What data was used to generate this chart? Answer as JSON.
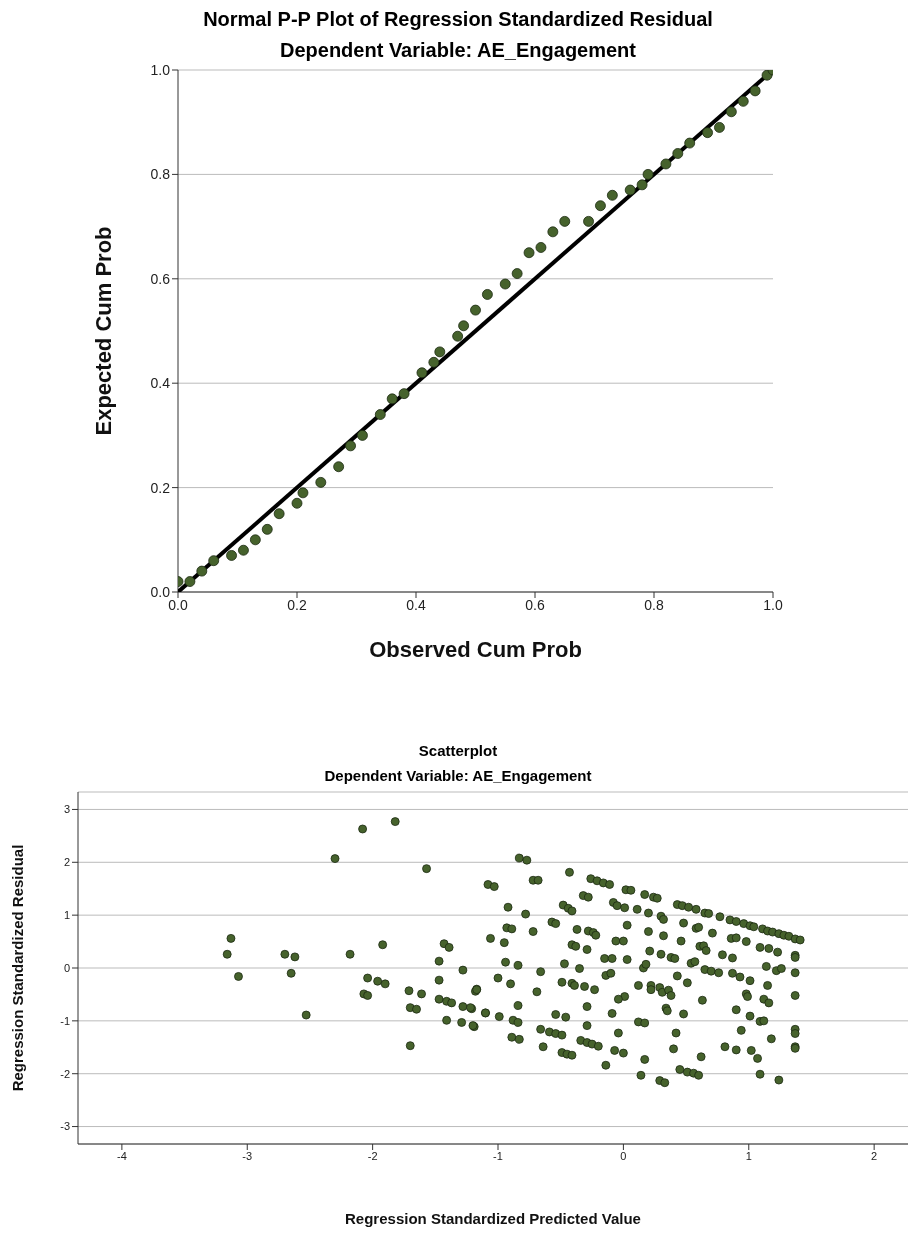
{
  "chart_data": [
    {
      "type": "scatter",
      "title": "Normal P-P Plot of Regression Standardized Residual",
      "subtitle": "Dependent Variable: AE_Engagement",
      "xlabel": "Observed Cum Prob",
      "ylabel": "Expected Cum Prob",
      "xlim": [
        0,
        1
      ],
      "ylim": [
        0,
        1
      ],
      "xticks": [
        {
          "value": 0,
          "label": "0.0"
        },
        {
          "value": 0.2,
          "label": "0.2"
        },
        {
          "value": 0.4,
          "label": "0.4"
        },
        {
          "value": 0.6,
          "label": "0.6"
        },
        {
          "value": 0.8,
          "label": "0.8"
        },
        {
          "value": 1,
          "label": "1.0"
        }
      ],
      "yticks": [
        {
          "value": 0,
          "label": "0.0"
        },
        {
          "value": 0.2,
          "label": "0.2"
        },
        {
          "value": 0.4,
          "label": "0.4"
        },
        {
          "value": 0.6,
          "label": "0.6"
        },
        {
          "value": 0.8,
          "label": "0.8"
        },
        {
          "value": 1,
          "label": "1.0"
        }
      ],
      "grid": "y",
      "marker": "circle",
      "series": [
        {
          "type": "line",
          "color": "#000000",
          "marker": "none",
          "x": [
            0,
            1
          ],
          "values": [
            0,
            1
          ]
        },
        {
          "color": "#46622c",
          "x": [
            0,
            0.02,
            0.04,
            0.06,
            0.09,
            0.11,
            0.13,
            0.15,
            0.17,
            0.2,
            0.21,
            0.24,
            0.27,
            0.29,
            0.31,
            0.34,
            0.36,
            0.38,
            0.41,
            0.43,
            0.44,
            0.47,
            0.48,
            0.5,
            0.52,
            0.55,
            0.57,
            0.59,
            0.61,
            0.63,
            0.65,
            0.69,
            0.71,
            0.73,
            0.76,
            0.78,
            0.79,
            0.82,
            0.84,
            0.86,
            0.89,
            0.91,
            0.93,
            0.95,
            0.97,
            0.99,
            1
          ],
          "values": [
            0.02,
            0.02,
            0.04,
            0.06,
            0.07,
            0.08,
            0.1,
            0.12,
            0.15,
            0.17,
            0.19,
            0.21,
            0.24,
            0.28,
            0.3,
            0.34,
            0.37,
            0.38,
            0.42,
            0.44,
            0.46,
            0.49,
            0.51,
            0.54,
            0.57,
            0.59,
            0.61,
            0.65,
            0.66,
            0.69,
            0.71,
            0.71,
            0.74,
            0.76,
            0.77,
            0.78,
            0.8,
            0.82,
            0.84,
            0.86,
            0.88,
            0.89,
            0.92,
            0.94,
            0.96,
            0.99,
            1
          ]
        }
      ]
    },
    {
      "type": "scatter",
      "title": "Scatterplot",
      "subtitle": "Dependent Variable: AE_Engagement",
      "xlabel": "Regression Standardized Predicted Value",
      "ylabel": "Regression Standardized Residual",
      "xlim": [
        -4.35,
        2.27
      ],
      "ylim": [
        -3.33,
        3.33
      ],
      "xticks": [
        -4,
        -3,
        -2,
        -1,
        0,
        1,
        2
      ],
      "yticks": [
        -3,
        -2,
        -1,
        0,
        1,
        2,
        3
      ],
      "grid": "y",
      "marker": "circle",
      "series": [
        {
          "color": "#46622c",
          "x": [
            -3.13,
            -3.16,
            -3.07,
            -2.7,
            -2.62,
            -2.65,
            -2.53,
            -2.3,
            -2.08,
            -1.82,
            -1.57,
            -2.18,
            -1.92,
            -2.04,
            -1.96,
            -1.9,
            -2.07,
            -2.04,
            -1.71,
            -1.61,
            -1.7,
            -1.65,
            -1.7,
            -1.43,
            -1.39,
            -1.47,
            -1.28,
            -1.47,
            -1.17,
            -1.18,
            -1.47,
            -1.41,
            -1.37,
            -1.28,
            -1.21,
            -1.41,
            -1.29,
            -1.19,
            -1.1,
            -0.83,
            -0.77,
            -1.08,
            -1.03,
            -0.72,
            -0.68,
            -0.43,
            -0.92,
            -0.78,
            -0.26,
            -0.21,
            -0.16,
            -0.11,
            0.02,
            0.06,
            0.17,
            0.24,
            0.27,
            -0.32,
            -0.28,
            -0.48,
            -0.44,
            -0.41,
            -0.08,
            -0.05,
            0.01,
            0.11,
            0.2,
            0.3,
            0.32,
            0.43,
            0.47,
            0.52,
            0.58,
            0.65,
            0.68,
            0.77,
            0.85,
            0.9,
            0.96,
            1.01,
            1.04,
            1.11,
            1.15,
            1.19,
            1.24,
            1.28,
            1.32,
            1.37,
            1.41,
            0.48,
            0.58,
            0.6,
            0.71,
            0.86,
            0.9,
            0.98,
            1.09,
            1.16,
            1.23,
            1.37,
            1.37,
            -0.57,
            -0.54,
            -0.93,
            -0.89,
            -0.72,
            -1.06,
            -0.95,
            -0.37,
            -0.28,
            -0.24,
            -0.22,
            0.03,
            0.2,
            0.32,
            0.46,
            -0.06,
            0,
            -0.41,
            -0.38,
            -0.29,
            0.21,
            0.3,
            0.38,
            0.41,
            0.61,
            0.64,
            0.66,
            0.79,
            0.87,
            -0.15,
            -0.09,
            0.03,
            -0.94,
            -0.84,
            -0.47,
            -0.35,
            -0.66,
            0.16,
            0.18,
            0.54,
            0.57,
            0.65,
            0.7,
            0.76,
            0.87,
            0.93,
            1.01,
            1.14,
            1.22,
            1.26,
            1.37,
            -0.14,
            -0.1,
            0.43,
            0.51,
            -1,
            -0.9,
            -1.17,
            -0.49,
            -0.41,
            -0.39,
            -0.31,
            -0.23,
            -0.69,
            0.12,
            0.22,
            0.22,
            0.29,
            0.31,
            0.36,
            0.38,
            0.01,
            -0.04,
            1.15,
            0.98,
            0.99,
            1.12,
            1.16,
            1.37,
            0.63,
            -0.84,
            -0.29,
            -1.22,
            -1.1,
            -0.99,
            -0.54,
            -0.46,
            -0.88,
            -0.84,
            -0.09,
            0.34,
            0.35,
            0.48,
            0.9,
            1.01,
            1.09,
            1.12,
            -1.2,
            -0.29,
            0.12,
            0.17,
            -0.66,
            -0.59,
            -0.54,
            -0.49,
            -0.04,
            0.42,
            0.94,
            1.37,
            1.37,
            -0.89,
            -0.83,
            -0.34,
            -0.29,
            -0.25,
            -0.2,
            1.18,
            1.37,
            1.37,
            -0.64,
            -0.49,
            -0.45,
            -0.41,
            -0.07,
            0,
            0.4,
            0.81,
            0.9,
            1.02,
            1.07,
            0.62,
            -0.14,
            0.17,
            0.45,
            0.51,
            0.56,
            0.6,
            0.14,
            0.29,
            0.33,
            1.09,
            1.24
          ],
          "values": [
            0.56,
            0.26,
            -0.16,
            0.26,
            0.21,
            -0.1,
            -0.89,
            2.07,
            2.63,
            2.77,
            1.88,
            0.26,
            0.44,
            -0.19,
            -0.25,
            -0.3,
            -0.49,
            -0.52,
            -0.43,
            -0.49,
            -0.75,
            -0.78,
            -1.47,
            0.46,
            0.39,
            0.13,
            -0.04,
            -0.23,
            -0.4,
            -0.44,
            -0.59,
            -0.63,
            -0.66,
            -0.73,
            -0.77,
            -0.99,
            -1.03,
            -1.11,
            -0.85,
            2.08,
            2.04,
            1.58,
            1.54,
            1.66,
            1.66,
            1.81,
            1.15,
            1.02,
            1.69,
            1.65,
            1.61,
            1.58,
            1.48,
            1.47,
            1.39,
            1.34,
            1.32,
            1.37,
            1.34,
            1.19,
            1.13,
            1.08,
            1.24,
            1.18,
            1.14,
            1.11,
            1.04,
            0.98,
            0.92,
            1.2,
            1.18,
            1.15,
            1.11,
            1.04,
            1.03,
            0.97,
            0.91,
            0.88,
            0.84,
            0.8,
            0.78,
            0.74,
            0.7,
            0.68,
            0.65,
            0.62,
            0.6,
            0.55,
            0.53,
            0.85,
            0.75,
            0.77,
            0.66,
            0.56,
            0.57,
            0.5,
            0.39,
            0.37,
            0.3,
            0.24,
            0.2,
            0.87,
            0.84,
            0.76,
            0.74,
            0.69,
            0.56,
            0.48,
            0.73,
            0.7,
            0.67,
            0.62,
            0.81,
            0.69,
            0.61,
            0.51,
            0.51,
            0.51,
            0.44,
            0.41,
            0.35,
            0.32,
            0.26,
            0.2,
            0.18,
            0.41,
            0.42,
            0.33,
            0.25,
            0.19,
            0.18,
            0.18,
            0.16,
            0.11,
            0.05,
            0.08,
            -0.01,
            -0.07,
            0,
            0.07,
            0.09,
            0.12,
            -0.03,
            -0.06,
            -0.09,
            -0.1,
            -0.17,
            -0.24,
            0.03,
            -0.05,
            -0.01,
            -0.09,
            -0.14,
            -0.1,
            -0.15,
            -0.28,
            -0.19,
            -0.3,
            -0.41,
            -0.27,
            -0.29,
            -0.33,
            -0.35,
            -0.41,
            -0.45,
            -0.33,
            -0.33,
            -0.41,
            -0.37,
            -0.46,
            -0.42,
            -0.52,
            -0.54,
            -0.59,
            -0.33,
            -0.49,
            -0.54,
            -0.59,
            -0.66,
            -0.52,
            -0.61,
            -0.71,
            -0.73,
            -0.75,
            -0.85,
            -0.92,
            -0.88,
            -0.93,
            -0.99,
            -1.03,
            -0.86,
            -0.76,
            -0.81,
            -0.87,
            -0.79,
            -0.91,
            -1.01,
            -1,
            -1.09,
            -1.09,
            -1.02,
            -1.04,
            -1.16,
            -1.21,
            -1.24,
            -1.27,
            -1.23,
            -1.23,
            -1.18,
            -1.16,
            -1.24,
            -1.31,
            -1.35,
            -1.37,
            -1.41,
            -1.44,
            -1.48,
            -1.34,
            -1.49,
            -1.52,
            -1.49,
            -1.6,
            -1.63,
            -1.65,
            -1.56,
            -1.61,
            -1.53,
            -1.49,
            -1.55,
            -1.56,
            -1.71,
            -1.68,
            -1.84,
            -1.73,
            -1.92,
            -1.97,
            -1.99,
            -2.03,
            -2.03,
            -2.13,
            -2.17,
            -2.01,
            -2.12
          ]
        }
      ]
    }
  ]
}
